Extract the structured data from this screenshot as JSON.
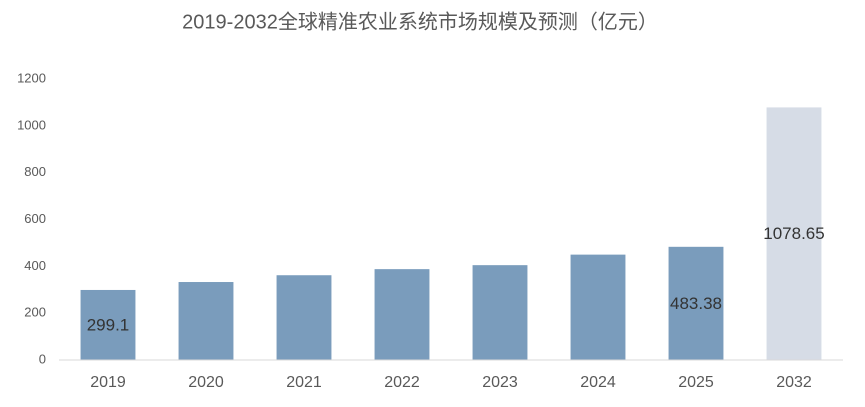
{
  "chart_data": {
    "type": "bar",
    "title": "2019-2032全球精准农业系统市场规模及预测（亿元）",
    "categories": [
      "2019",
      "2020",
      "2021",
      "2022",
      "2023",
      "2024",
      "2025",
      "2032"
    ],
    "values": [
      299.1,
      333,
      362,
      388,
      405,
      450,
      483.38,
      1078.65
    ],
    "value_labels": [
      "299.1",
      null,
      null,
      null,
      null,
      null,
      "483.38",
      "1078.65"
    ],
    "colors": [
      "#7a9cbc",
      "#7a9cbc",
      "#7a9cbc",
      "#7a9cbc",
      "#7a9cbc",
      "#7a9cbc",
      "#7a9cbc",
      "#d6dce6"
    ],
    "ylim": [
      0,
      1200
    ],
    "yticks": [
      0,
      200,
      400,
      600,
      800,
      1000,
      1200
    ],
    "grid": false
  }
}
